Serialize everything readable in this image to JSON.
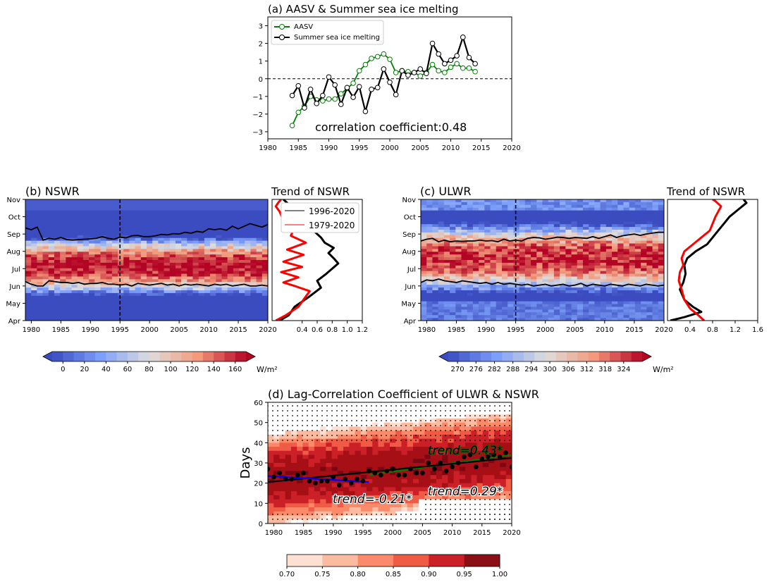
{
  "chart_data": [
    {
      "id": "a",
      "type": "line",
      "title": "(a) AASV & Summer sea ice melting",
      "xlim": [
        1980,
        2020
      ],
      "ylim": [
        -3.4,
        3.5
      ],
      "xticks": [
        1980,
        1985,
        1990,
        1995,
        2000,
        2005,
        2010,
        2015,
        2020
      ],
      "yticks": [
        -3,
        -2,
        -1,
        0,
        1,
        2,
        3
      ],
      "legend_position": "upper-left",
      "annotation": "correlation coefficient:0.48",
      "zero_line": "dashed",
      "series": [
        {
          "name": "AASV",
          "color": "#008000",
          "x": [
            1984,
            1985,
            1986,
            1987,
            1988,
            1989,
            1990,
            1991,
            1992,
            1993,
            1994,
            1995,
            1996,
            1997,
            1998,
            1999,
            2000,
            2001,
            2002,
            2003,
            2004,
            2005,
            2006,
            2007,
            2008,
            2009,
            2010,
            2011,
            2012,
            2013,
            2014
          ],
          "y": [
            -2.65,
            -1.9,
            -1.55,
            -1.0,
            -1.2,
            -1.25,
            -1.15,
            -1.15,
            -0.85,
            -0.55,
            -0.25,
            0.45,
            0.8,
            1.15,
            1.25,
            1.4,
            1.1,
            0.35,
            0.45,
            0.4,
            0.35,
            0.15,
            0.35,
            0.8,
            0.45,
            0.35,
            0.65,
            0.85,
            0.6,
            0.6,
            0.4
          ]
        },
        {
          "name": "Summer sea ice melting",
          "color": "#000000",
          "x": [
            1984,
            1985,
            1986,
            1987,
            1988,
            1989,
            1990,
            1991,
            1992,
            1993,
            1994,
            1995,
            1996,
            1997,
            1998,
            1999,
            2000,
            2001,
            2002,
            2003,
            2004,
            2005,
            2006,
            2007,
            2008,
            2009,
            2010,
            2011,
            2012,
            2013,
            2014
          ],
          "y": [
            -0.95,
            -0.4,
            -1.65,
            -0.6,
            -1.4,
            -0.95,
            0.1,
            -0.35,
            -1.45,
            -0.5,
            -1.05,
            -0.45,
            -1.85,
            -0.6,
            -0.5,
            0.55,
            -0.2,
            -0.9,
            0.45,
            0.2,
            0.35,
            0.55,
            0.3,
            2.0,
            1.4,
            0.85,
            1.05,
            1.3,
            2.35,
            1.2,
            0.85
          ]
        }
      ]
    },
    {
      "id": "b",
      "type": "heatmap",
      "title": "(b) NSWR",
      "xlim": [
        1979,
        2020
      ],
      "xticks": [
        1980,
        1985,
        1990,
        1995,
        2000,
        2005,
        2010,
        2015,
        2020
      ],
      "yticklabels": [
        "Apr",
        "May",
        "Jun",
        "Jul",
        "Aug",
        "Sep",
        "Oct",
        "Nov"
      ],
      "divider_year": 1995,
      "upper_contour": {
        "x": [
          1979,
          1980,
          1981,
          1982,
          1983,
          1984,
          1985,
          1986,
          1987,
          1988,
          1989,
          1990,
          1991,
          1992,
          1993,
          1994,
          1995,
          1996,
          1997,
          1998,
          1999,
          2000,
          2001,
          2002,
          2003,
          2004,
          2005,
          2006,
          2007,
          2008,
          2009,
          2010,
          2011,
          2012,
          2013,
          2014,
          2015,
          2016,
          2017,
          2018,
          2019,
          2020
        ],
        "month": [
          9.35,
          9.25,
          9.4,
          8.65,
          8.75,
          8.7,
          8.8,
          8.68,
          8.65,
          8.68,
          8.7,
          8.72,
          8.75,
          8.85,
          8.75,
          8.7,
          8.82,
          8.78,
          8.9,
          8.92,
          8.85,
          8.85,
          8.9,
          8.98,
          8.95,
          9.02,
          9.0,
          9.1,
          9.05,
          9.15,
          9.1,
          9.3,
          9.25,
          9.3,
          9.22,
          9.45,
          9.3,
          9.45,
          9.6,
          9.5,
          9.4,
          9.55
        ]
      },
      "lower_contour": {
        "x": [
          1979,
          1980,
          1981,
          1982,
          1983,
          1984,
          1985,
          1986,
          1987,
          1988,
          1989,
          1990,
          1991,
          1992,
          1993,
          1994,
          1995,
          1996,
          1997,
          1998,
          1999,
          2000,
          2001,
          2002,
          2003,
          2004,
          2005,
          2006,
          2007,
          2008,
          2009,
          2010,
          2011,
          2012,
          2013,
          2014,
          2015,
          2016,
          2017,
          2018,
          2019,
          2020
        ],
        "month": [
          6.25,
          6.1,
          6.0,
          6.0,
          6.3,
          6.25,
          6.2,
          6.2,
          6.15,
          6.2,
          6.1,
          6.15,
          6.15,
          6.2,
          6.1,
          6.1,
          6.05,
          6.1,
          6.0,
          6.15,
          6.1,
          6.05,
          6.1,
          6.15,
          6.05,
          6.1,
          6.0,
          6.1,
          6.05,
          6.1,
          6.05,
          6.0,
          6.1,
          6.05,
          6.1,
          6.0,
          6.05,
          6.1,
          6.0,
          6.0,
          6.05,
          6.0
        ]
      },
      "colorbar": {
        "ticks": [
          0,
          20,
          40,
          60,
          80,
          100,
          120,
          140,
          160
        ],
        "vmin": -10,
        "vmax": 170,
        "unit": "W/m²"
      }
    },
    {
      "id": "b-trend",
      "type": "line",
      "title": "Trend of NSWR",
      "xticks": [
        0.4,
        0.6,
        0.8,
        1.0,
        1.2
      ],
      "xlim": [
        0.0,
        1.2
      ],
      "series": [
        {
          "name": "1996-2020",
          "color": "#000000",
          "x": [
            0.1,
            0.22,
            0.3,
            0.5,
            0.65,
            0.6,
            0.72,
            0.8,
            0.88,
            0.82,
            0.75,
            0.82,
            0.7,
            0.65,
            0.55,
            0.48,
            0.42,
            0.3,
            0.2,
            0.15
          ],
          "m": [
            4.0,
            4.3,
            4.8,
            5.4,
            5.9,
            6.3,
            6.7,
            7.0,
            7.3,
            7.6,
            7.9,
            8.2,
            8.5,
            8.8,
            9.2,
            9.6,
            10.0,
            10.4,
            10.8,
            11.0
          ]
        },
        {
          "name": "1979-2020",
          "color": "#ff0000",
          "x": [
            0.05,
            0.18,
            0.35,
            0.5,
            0.3,
            0.15,
            0.35,
            0.12,
            0.4,
            0.15,
            0.42,
            0.2,
            0.45,
            0.25,
            0.3,
            0.15,
            0.1,
            0.05,
            0.08,
            0.12
          ],
          "m": [
            4.0,
            4.3,
            4.8,
            5.7,
            6.0,
            6.2,
            6.5,
            6.8,
            7.1,
            7.4,
            7.8,
            8.1,
            8.5,
            8.9,
            9.4,
            9.8,
            10.3,
            10.6,
            10.8,
            11.0
          ]
        }
      ]
    },
    {
      "id": "c",
      "type": "heatmap",
      "title": "(c) ULWR",
      "xlim": [
        1979,
        2020
      ],
      "xticks": [
        1980,
        1985,
        1990,
        1995,
        2000,
        2005,
        2010,
        2015,
        2020
      ],
      "yticklabels": [
        "Apr",
        "May",
        "Jun",
        "Jul",
        "Aug",
        "Sep",
        "Oct",
        "Nov"
      ],
      "divider_year": 1995,
      "upper_contour": {
        "x": [
          1979,
          1980,
          1981,
          1982,
          1983,
          1984,
          1985,
          1986,
          1987,
          1988,
          1989,
          1990,
          1991,
          1992,
          1993,
          1994,
          1995,
          1996,
          1997,
          1998,
          1999,
          2000,
          2001,
          2002,
          2003,
          2004,
          2005,
          2006,
          2007,
          2008,
          2009,
          2010,
          2011,
          2012,
          2013,
          2014,
          2015,
          2016,
          2017,
          2018,
          2019,
          2020
        ],
        "month": [
          8.6,
          8.7,
          8.75,
          8.55,
          8.65,
          8.55,
          8.6,
          8.58,
          8.6,
          8.6,
          8.65,
          8.6,
          8.62,
          8.55,
          8.7,
          8.6,
          8.65,
          8.6,
          8.75,
          8.8,
          8.78,
          8.7,
          8.75,
          8.82,
          8.8,
          8.75,
          8.8,
          8.78,
          8.75,
          8.85,
          8.75,
          8.85,
          8.95,
          8.8,
          8.9,
          8.95,
          9.0,
          8.92,
          9.0,
          9.05,
          9.1,
          9.1
        ]
      },
      "lower_contour": {
        "x": [
          1979,
          1980,
          1981,
          1982,
          1983,
          1984,
          1985,
          1986,
          1987,
          1988,
          1989,
          1990,
          1991,
          1992,
          1993,
          1994,
          1995,
          1996,
          1997,
          1998,
          1999,
          2000,
          2001,
          2002,
          2003,
          2004,
          2005,
          2006,
          2007,
          2008,
          2009,
          2010,
          2011,
          2012,
          2013,
          2014,
          2015,
          2016,
          2017,
          2018,
          2019,
          2020
        ],
        "month": [
          6.2,
          6.35,
          6.3,
          6.4,
          6.3,
          6.25,
          6.2,
          6.3,
          6.25,
          6.2,
          6.15,
          6.2,
          6.1,
          6.2,
          6.1,
          6.15,
          6.1,
          6.05,
          6.1,
          6.0,
          6.05,
          6.1,
          6.0,
          6.05,
          6.1,
          6.0,
          6.05,
          6.15,
          6.0,
          6.1,
          6.05,
          6.0,
          6.1,
          6.05,
          6.0,
          6.1,
          6.05,
          6.0,
          6.1,
          6.05,
          6.0,
          6.05
        ]
      },
      "colorbar": {
        "ticks": [
          270,
          276,
          282,
          288,
          294,
          300,
          306,
          312,
          318,
          324
        ],
        "vmin": 267,
        "vmax": 330,
        "unit": "W/m²"
      }
    },
    {
      "id": "c-trend",
      "type": "line",
      "title": "Trend of NSWR",
      "xticks": [
        0.4,
        0.8,
        1.2,
        1.6
      ],
      "xlim": [
        0.0,
        1.6
      ],
      "series": [
        {
          "name": "",
          "color": "#000000",
          "x": [
            0.05,
            0.3,
            0.6,
            0.45,
            0.3,
            0.22,
            0.28,
            0.32,
            0.3,
            0.35,
            0.5,
            0.7,
            0.8,
            0.9,
            1.0,
            1.1,
            1.25,
            1.4,
            1.35
          ],
          "m": [
            4.0,
            4.2,
            4.5,
            4.8,
            5.2,
            5.8,
            6.2,
            6.7,
            7.2,
            7.6,
            8.0,
            8.4,
            8.8,
            9.2,
            9.6,
            10.0,
            10.4,
            10.8,
            11.0
          ]
        },
        {
          "name": "",
          "color": "#ff0000",
          "x": [
            0.65,
            0.55,
            0.4,
            0.3,
            0.25,
            0.2,
            0.22,
            0.28,
            0.25,
            0.3,
            0.45,
            0.6,
            0.75,
            0.8,
            0.85,
            0.9,
            0.95,
            0.85,
            0.8
          ],
          "m": [
            4.0,
            4.3,
            4.7,
            5.2,
            5.8,
            6.3,
            6.8,
            7.2,
            7.6,
            8.0,
            8.4,
            8.8,
            9.2,
            9.6,
            10.0,
            10.3,
            10.6,
            10.9,
            11.0
          ]
        }
      ]
    },
    {
      "id": "d",
      "type": "heatmap",
      "title": "(d) Lag-Correlation Coefficient of ULWR & NSWR",
      "ylabel": "Days",
      "xlim": [
        1979,
        2020
      ],
      "ylim": [
        0,
        60
      ],
      "xticks": [
        1980,
        1985,
        1990,
        1995,
        2000,
        2005,
        2010,
        2015,
        2020
      ],
      "yticks": [
        0,
        10,
        20,
        30,
        40,
        50,
        60
      ],
      "points": {
        "x": [
          1979,
          1980,
          1981,
          1982,
          1983,
          1984,
          1985,
          1986,
          1987,
          1988,
          1989,
          1990,
          1991,
          1992,
          1993,
          1994,
          1995,
          1996,
          1997,
          1998,
          1999,
          2000,
          2001,
          2002,
          2003,
          2004,
          2005,
          2006,
          2007,
          2008,
          2009,
          2010,
          2011,
          2012,
          2013,
          2014,
          2015,
          2016,
          2017,
          2018,
          2019,
          2020
        ],
        "y": [
          27,
          23,
          25,
          22,
          22,
          24,
          25,
          21,
          20,
          21,
          21,
          23,
          19,
          22,
          20,
          22,
          21,
          26,
          25,
          24,
          26,
          27,
          24,
          24,
          27,
          25,
          25,
          30,
          27,
          30,
          26,
          28,
          30,
          33,
          34,
          28,
          32,
          33,
          34,
          33,
          35,
          28
        ]
      },
      "trend_lines": [
        {
          "label": "trend=0.43*",
          "color": "#008000",
          "x": [
            1996,
            2020
          ],
          "y": [
            24.0,
            34.0
          ]
        },
        {
          "label": "trend=0.29*",
          "color": "#000000",
          "x": [
            1979,
            2020
          ],
          "y": [
            20.5,
            32.5
          ]
        },
        {
          "label": "trend=-0.21*",
          "color": "#0000ff",
          "x": [
            1979,
            1996
          ],
          "y": [
            23.5,
            20.5
          ]
        }
      ],
      "colorbar": {
        "ticks": [
          0.7,
          0.75,
          0.8,
          0.85,
          0.9,
          0.95,
          1.0
        ],
        "labels": [
          "0.70",
          "0.75",
          "0.80",
          "0.85",
          "0.90",
          "0.95",
          "1.00"
        ]
      }
    }
  ]
}
